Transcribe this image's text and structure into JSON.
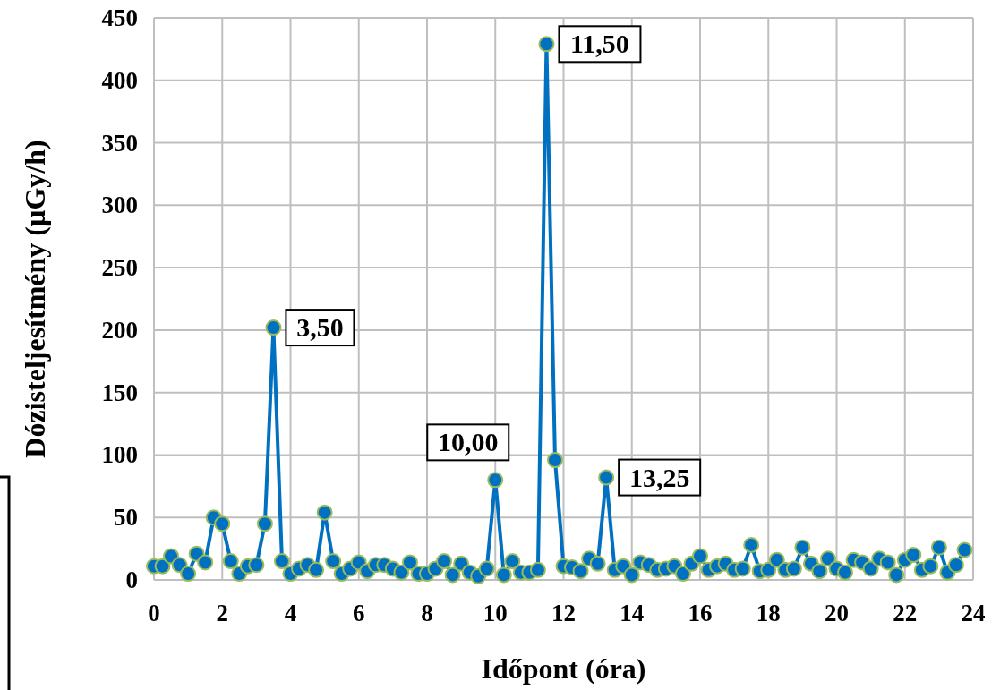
{
  "chart_data": {
    "type": "line",
    "xlabel": "Időpont (óra)",
    "ylabel": "Dózisteljesítmény (µGy/h)",
    "xlim": [
      0,
      24
    ],
    "xticks": [
      0,
      2,
      4,
      6,
      8,
      10,
      12,
      14,
      16,
      18,
      20,
      22,
      24
    ],
    "ylim": [
      0,
      450
    ],
    "yticks": [
      0,
      50,
      100,
      150,
      200,
      250,
      300,
      350,
      400,
      450
    ],
    "grid": true,
    "marker": "circle",
    "line_style": "solid",
    "x": [
      0,
      0.25,
      0.5,
      0.75,
      1,
      1.25,
      1.5,
      1.75,
      2,
      2.25,
      2.5,
      2.75,
      3,
      3.25,
      3.5,
      3.75,
      4,
      4.25,
      4.5,
      4.75,
      5,
      5.25,
      5.5,
      5.75,
      6,
      6.25,
      6.5,
      6.75,
      7,
      7.25,
      7.5,
      7.75,
      8,
      8.25,
      8.5,
      8.75,
      9,
      9.25,
      9.5,
      9.75,
      10,
      10.25,
      10.5,
      10.75,
      11,
      11.25,
      11.5,
      11.75,
      12,
      12.25,
      12.5,
      12.75,
      13,
      13.25,
      13.5,
      13.75,
      14,
      14.25,
      14.5,
      14.75,
      15,
      15.25,
      15.5,
      15.75,
      16,
      16.25,
      16.5,
      16.75,
      17,
      17.25,
      17.5,
      17.75,
      18,
      18.25,
      18.5,
      18.75,
      19,
      19.25,
      19.5,
      19.75,
      20,
      20.25,
      20.5,
      20.75,
      21,
      21.25,
      21.5,
      21.75,
      22,
      22.25,
      22.5,
      22.75,
      23,
      23.25,
      23.5,
      23.75
    ],
    "series": [
      {
        "color": "#0070c0",
        "values": [
          11,
          11,
          19,
          12,
          5,
          21,
          14,
          50,
          45,
          15,
          5,
          11,
          12,
          45,
          202,
          15,
          5,
          9,
          12,
          8,
          54,
          15,
          5,
          9,
          14,
          7,
          12,
          12,
          9,
          6,
          14,
          5,
          5,
          9,
          15,
          4,
          13,
          6,
          3,
          9,
          80,
          4,
          15,
          6,
          6,
          8,
          429,
          96,
          11,
          10,
          7,
          17,
          13,
          82,
          8,
          11,
          4,
          14,
          12,
          8,
          9,
          11,
          5,
          13,
          19,
          8,
          11,
          13,
          8,
          9,
          28,
          7,
          8,
          16,
          8,
          9,
          26,
          13,
          7,
          17,
          9,
          6,
          16,
          14,
          9,
          17,
          14,
          4,
          16,
          20,
          8,
          11,
          26,
          6,
          12,
          24
        ]
      }
    ],
    "annotations": [
      {
        "text": "3,50",
        "x": 3.5,
        "y": 202
      },
      {
        "text": "10,00",
        "x": 10,
        "y": 80
      },
      {
        "text": "11,50",
        "x": 11.5,
        "y": 429
      },
      {
        "text": "13,25",
        "x": 13.25,
        "y": 82
      }
    ]
  }
}
